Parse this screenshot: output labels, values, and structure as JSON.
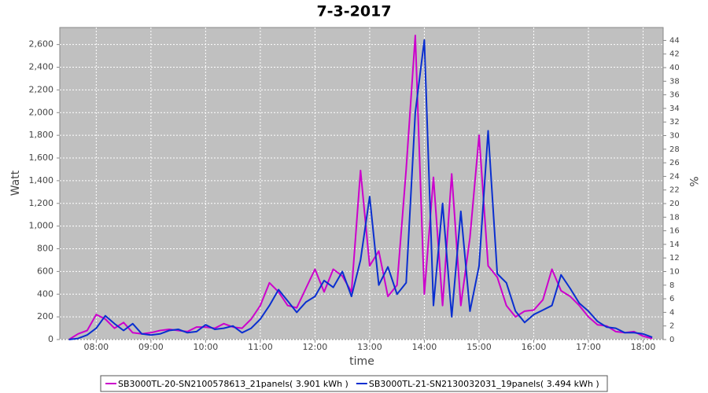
{
  "chart_data": {
    "type": "line",
    "title": "7-3-2017",
    "x_label": "time",
    "y_label": "Watt",
    "y2_label": "%",
    "x": [
      "07:30",
      "07:40",
      "07:50",
      "08:00",
      "08:10",
      "08:20",
      "08:30",
      "08:40",
      "08:50",
      "09:00",
      "09:10",
      "09:20",
      "09:30",
      "09:40",
      "09:50",
      "10:00",
      "10:10",
      "10:20",
      "10:30",
      "10:40",
      "10:50",
      "11:00",
      "11:10",
      "11:20",
      "11:30",
      "11:40",
      "11:50",
      "12:00",
      "12:10",
      "12:20",
      "12:30",
      "12:40",
      "12:50",
      "13:00",
      "13:10",
      "13:20",
      "13:30",
      "13:40",
      "13:50",
      "14:00",
      "14:10",
      "14:20",
      "14:30",
      "14:40",
      "14:50",
      "15:00",
      "15:10",
      "15:20",
      "15:30",
      "15:40",
      "15:50",
      "16:00",
      "16:10",
      "16:20",
      "16:30",
      "16:40",
      "16:50",
      "17:00",
      "17:10",
      "17:20",
      "17:30",
      "17:40",
      "17:50",
      "18:00",
      "18:10"
    ],
    "xlim": [
      "07:20",
      "18:22"
    ],
    "xticks": [
      "08:00",
      "09:00",
      "10:00",
      "11:00",
      "12:00",
      "13:00",
      "14:00",
      "15:00",
      "16:00",
      "17:00",
      "18:00"
    ],
    "ylim": [
      0,
      2750
    ],
    "yticks": [
      0,
      200,
      400,
      600,
      800,
      {
        "value": 1000,
        "label": "1,000"
      },
      {
        "value": 1200,
        "label": "1,200"
      },
      {
        "value": 1400,
        "label": "1,400"
      },
      {
        "value": 1600,
        "label": "1,600"
      },
      {
        "value": 1800,
        "label": "1,800"
      },
      {
        "value": 2000,
        "label": "2,000"
      },
      {
        "value": 2200,
        "label": "2,200"
      },
      {
        "value": 2400,
        "label": "2,400"
      },
      {
        "value": 2600,
        "label": "2,600"
      }
    ],
    "y2lim": [
      0,
      45.9
    ],
    "y2ticks": [
      0,
      2,
      4,
      6,
      8,
      10,
      12,
      14,
      16,
      18,
      20,
      22,
      24,
      26,
      28,
      30,
      32,
      34,
      36,
      38,
      40,
      42,
      44
    ],
    "grid": true,
    "series": [
      {
        "name": "SB3000TL-20-SN2100578613_21panels( 3.901 kWh )",
        "color": "#cc00cc",
        "values": [
          0,
          50,
          80,
          220,
          180,
          100,
          150,
          60,
          50,
          60,
          80,
          90,
          80,
          70,
          110,
          110,
          100,
          140,
          110,
          100,
          180,
          300,
          500,
          420,
          300,
          280,
          450,
          620,
          420,
          620,
          560,
          420,
          1490,
          650,
          780,
          380,
          480,
          1500,
          2680,
          400,
          1430,
          300,
          1460,
          300,
          900,
          1800,
          650,
          550,
          300,
          200,
          250,
          260,
          350,
          620,
          430,
          380,
          300,
          200,
          130,
          120,
          70,
          60,
          70,
          30,
          10
        ]
      },
      {
        "name": "SB3000TL-21-SN2130032031_19panels( 3.494 kWh )",
        "color": "#0a2fd0",
        "values": [
          0,
          10,
          40,
          100,
          210,
          140,
          80,
          140,
          50,
          40,
          50,
          80,
          90,
          60,
          70,
          130,
          90,
          100,
          120,
          60,
          100,
          180,
          300,
          440,
          340,
          240,
          330,
          380,
          520,
          460,
          600,
          380,
          700,
          1260,
          480,
          640,
          400,
          500,
          2000,
          2640,
          300,
          1200,
          200,
          1130,
          250,
          650,
          1840,
          580,
          500,
          250,
          150,
          220,
          260,
          300,
          570,
          450,
          320,
          250,
          160,
          110,
          100,
          60,
          60,
          50,
          20
        ]
      }
    ]
  }
}
